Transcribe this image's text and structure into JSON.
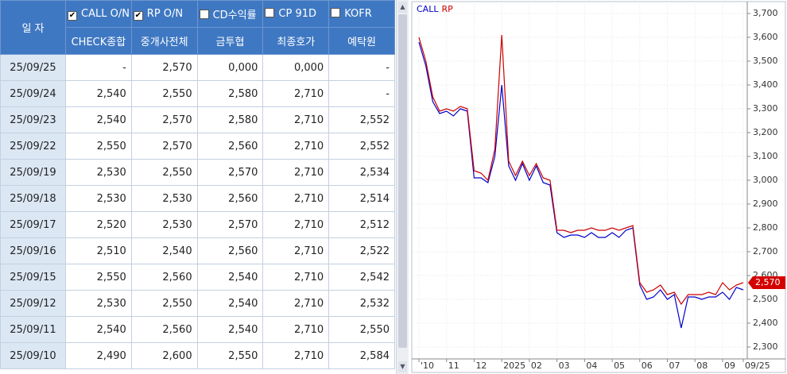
{
  "table": {
    "date_header": "일  자",
    "columns": [
      {
        "name": "CALL O/N",
        "checked": true,
        "source": "CHECK종합"
      },
      {
        "name": "RP O/N",
        "checked": true,
        "source": "중개사전체"
      },
      {
        "name": "CD수익률",
        "checked": false,
        "source": "금투협"
      },
      {
        "name": "CP 91D",
        "checked": false,
        "source": "최종호가"
      },
      {
        "name": "KOFR",
        "checked": false,
        "source": "예탁원"
      }
    ],
    "rows": [
      [
        "25/09/25",
        "-",
        "2,570",
        "0,000",
        "0,000",
        "-"
      ],
      [
        "25/09/24",
        "2,540",
        "2,550",
        "2,580",
        "2,710",
        "-"
      ],
      [
        "25/09/23",
        "2,540",
        "2,570",
        "2,580",
        "2,710",
        "2,552"
      ],
      [
        "25/09/22",
        "2,550",
        "2,570",
        "2,560",
        "2,710",
        "2,552"
      ],
      [
        "25/09/19",
        "2,530",
        "2,550",
        "2,570",
        "2,710",
        "2,534"
      ],
      [
        "25/09/18",
        "2,530",
        "2,530",
        "2,560",
        "2,710",
        "2,514"
      ],
      [
        "25/09/17",
        "2,520",
        "2,530",
        "2,570",
        "2,710",
        "2,512"
      ],
      [
        "25/09/16",
        "2,510",
        "2,540",
        "2,560",
        "2,710",
        "2,522"
      ],
      [
        "25/09/15",
        "2,550",
        "2,560",
        "2,540",
        "2,710",
        "2,542"
      ],
      [
        "25/09/12",
        "2,530",
        "2,550",
        "2,540",
        "2,710",
        "2,532"
      ],
      [
        "25/09/11",
        "2,540",
        "2,560",
        "2,540",
        "2,710",
        "2,550"
      ],
      [
        "25/09/10",
        "2,490",
        "2,600",
        "2,550",
        "2,710",
        "2,584"
      ]
    ]
  },
  "chart_data": {
    "type": "line",
    "categories": [
      "'10",
      null,
      null,
      null,
      "11",
      null,
      null,
      null,
      "12",
      null,
      null,
      null,
      "2025",
      null,
      null,
      null,
      "02",
      null,
      null,
      null,
      "03",
      null,
      null,
      null,
      "04",
      null,
      null,
      null,
      "05",
      null,
      null,
      null,
      "06",
      null,
      null,
      null,
      "07",
      null,
      null,
      null,
      "08",
      null,
      null,
      null,
      "09",
      null,
      null,
      "09/25"
    ],
    "series": [
      {
        "name": "CALL",
        "color": "#0000cc",
        "values": [
          3580,
          3480,
          3330,
          3280,
          3290,
          3270,
          3300,
          3290,
          3010,
          3010,
          2990,
          3100,
          3400,
          3060,
          3000,
          3070,
          3000,
          3060,
          2990,
          2980,
          2780,
          2760,
          2770,
          2770,
          2760,
          2780,
          2760,
          2760,
          2780,
          2760,
          2790,
          2800,
          2560,
          2500,
          2510,
          2540,
          2500,
          2520,
          2380,
          2510,
          2510,
          2500,
          2510,
          2510,
          2530,
          2500,
          2550,
          2540
        ]
      },
      {
        "name": "RP",
        "color": "#cc0000",
        "values": [
          3600,
          3500,
          3350,
          3290,
          3300,
          3290,
          3310,
          3300,
          3040,
          3030,
          3000,
          3130,
          3610,
          3080,
          3020,
          3080,
          3020,
          3070,
          3010,
          3000,
          2790,
          2790,
          2780,
          2790,
          2790,
          2800,
          2790,
          2790,
          2800,
          2790,
          2800,
          2810,
          2570,
          2530,
          2540,
          2560,
          2520,
          2530,
          2480,
          2520,
          2520,
          2520,
          2530,
          2520,
          2570,
          2540,
          2560,
          2570
        ]
      }
    ],
    "ylim": [
      2250,
      3750
    ],
    "yticks": [
      {
        "value": 2300,
        "label": "2,300"
      },
      {
        "value": 2400,
        "label": "2,400"
      },
      {
        "value": 2500,
        "label": "2,500"
      },
      {
        "value": 2600,
        "label": "2,600"
      },
      {
        "value": 2700,
        "label": "2,700"
      },
      {
        "value": 2800,
        "label": "2,800"
      },
      {
        "value": 2900,
        "label": "2,900"
      },
      {
        "value": 3000,
        "label": "3,000"
      },
      {
        "value": 3100,
        "label": "3,100"
      },
      {
        "value": 3200,
        "label": "3,200"
      },
      {
        "value": 3300,
        "label": "3,300"
      },
      {
        "value": 3400,
        "label": "3,400"
      },
      {
        "value": 3500,
        "label": "3,500"
      },
      {
        "value": 3600,
        "label": "3,600"
      },
      {
        "value": 3700,
        "label": "3,700"
      }
    ],
    "last_value": {
      "value": 2570,
      "label": "2,570"
    },
    "grid": true
  }
}
